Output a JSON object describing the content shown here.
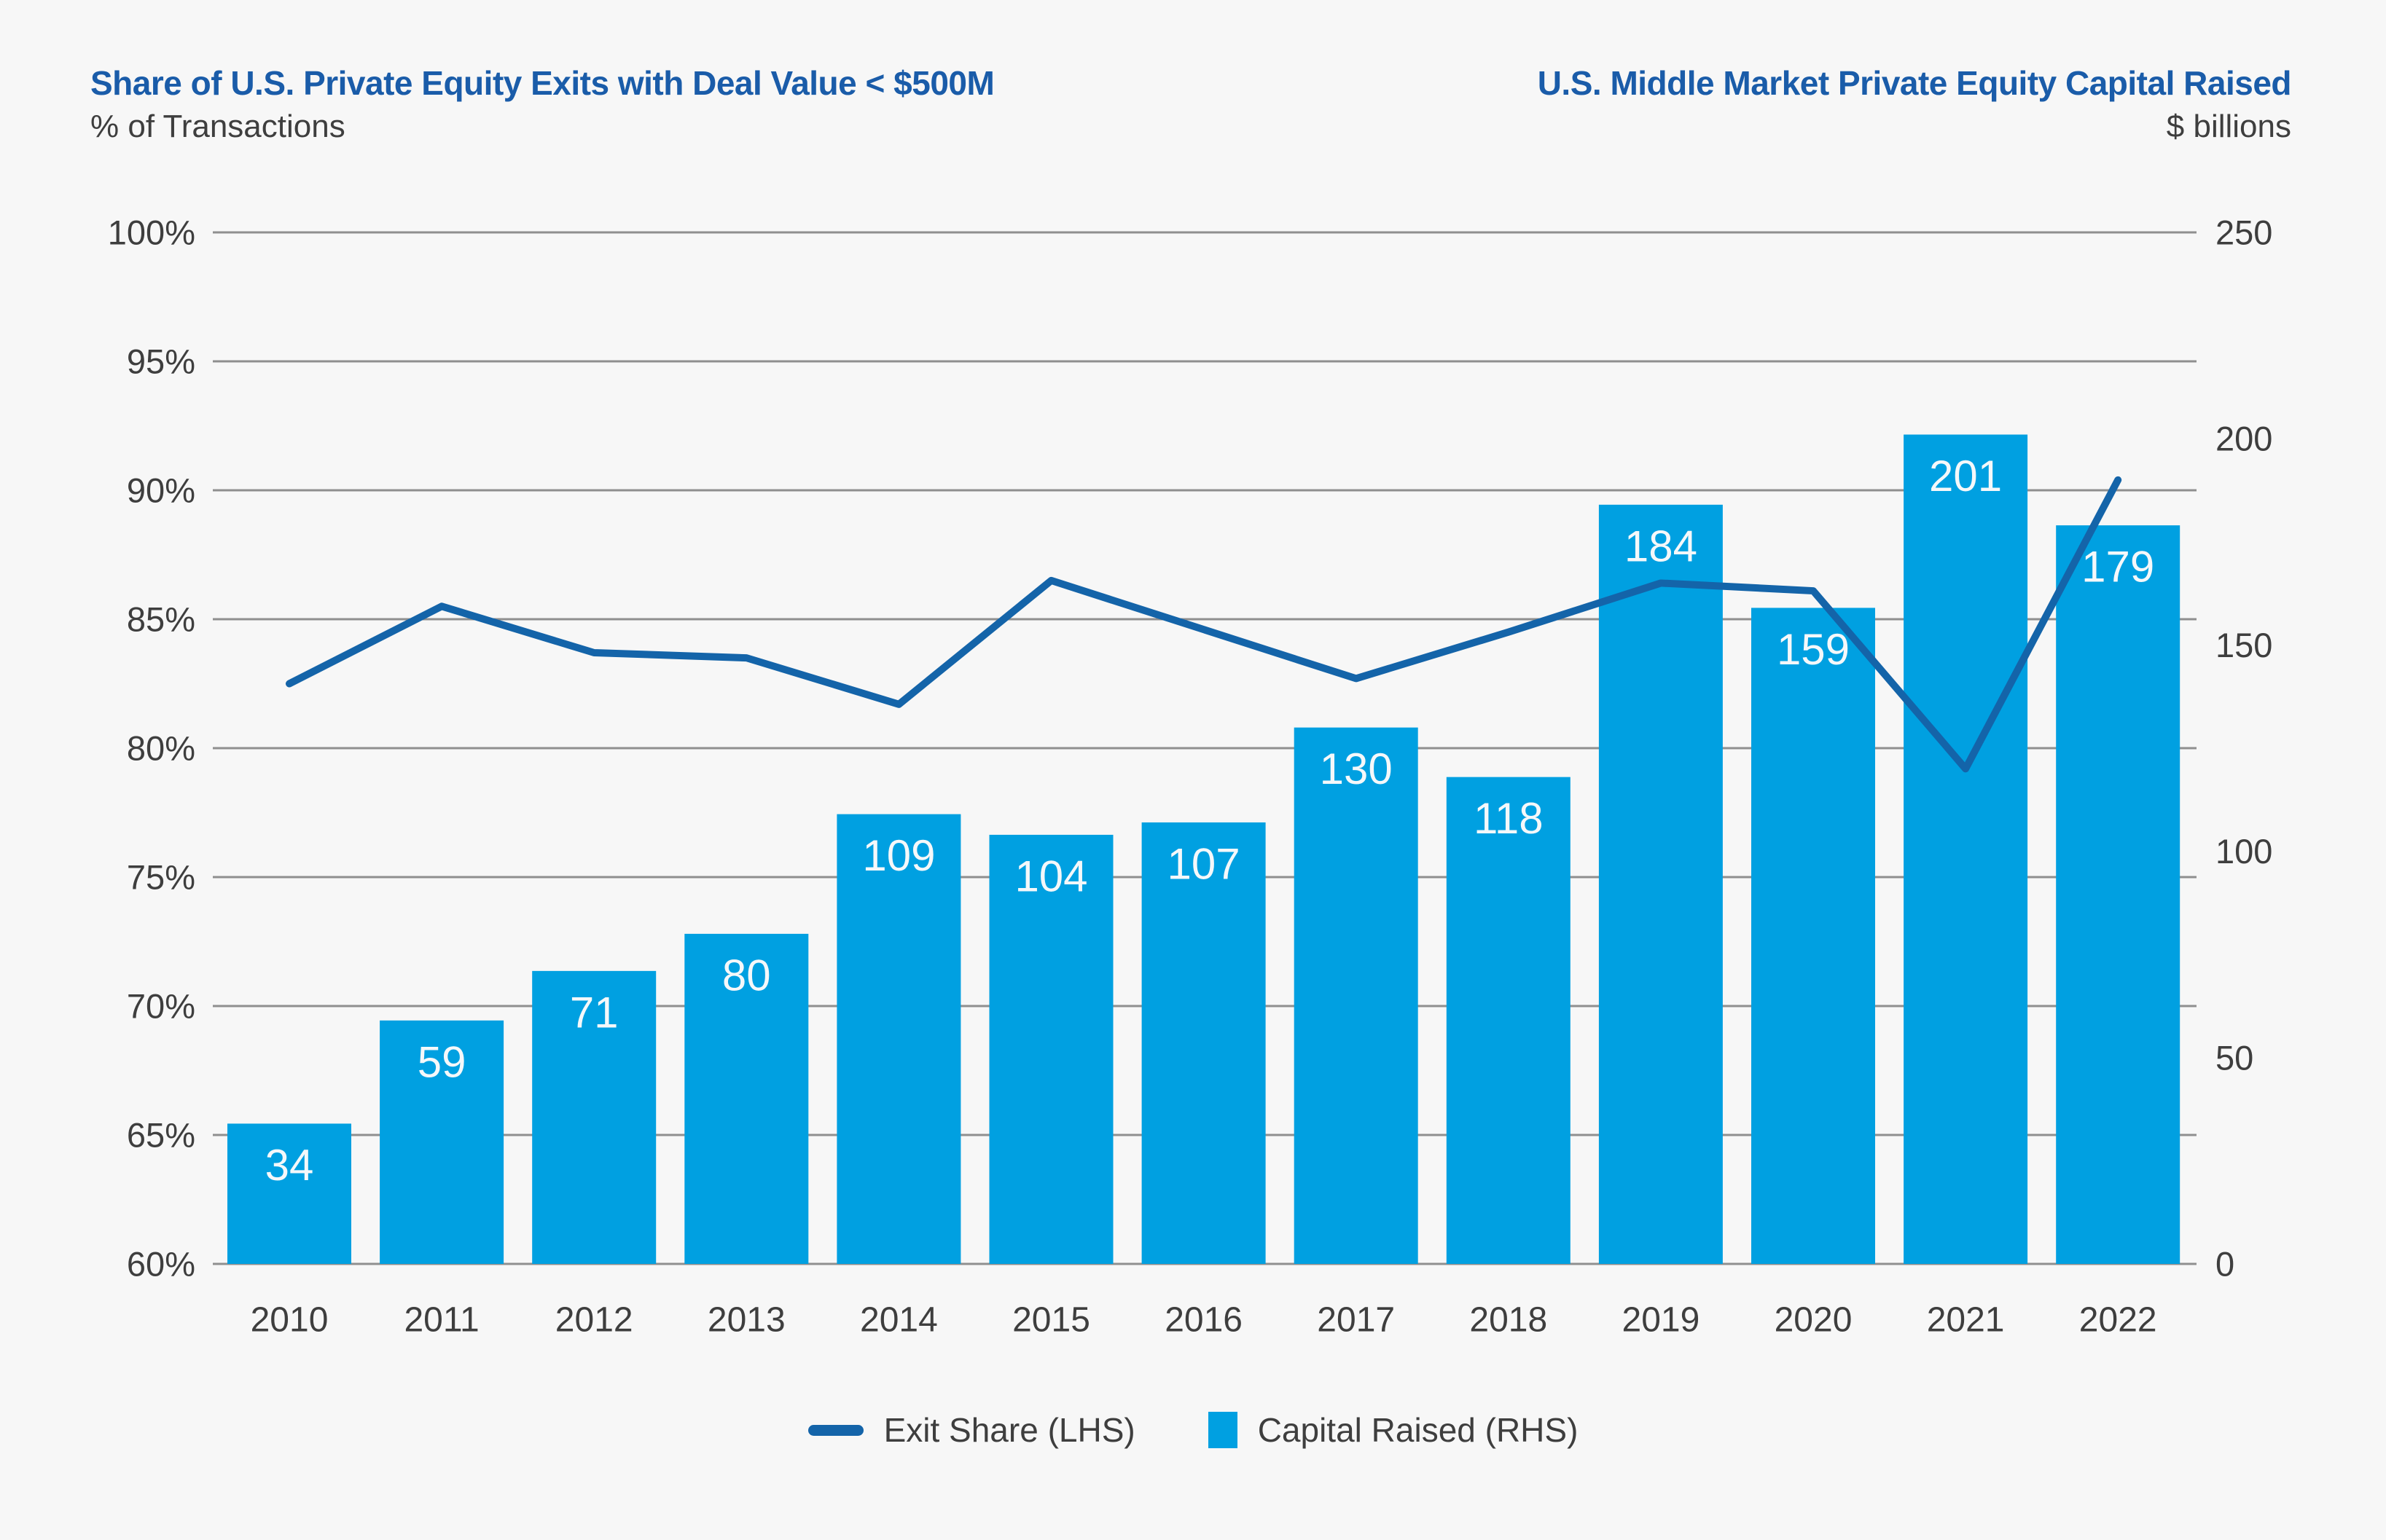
{
  "header": {
    "left_title": "Share of U.S. Private Equity Exits with Deal Value < $500M",
    "left_subtitle": "% of Transactions",
    "right_title": "U.S. Middle Market Private Equity Capital Raised",
    "right_subtitle": "$ billions"
  },
  "legend": {
    "items": [
      {
        "label": "Exit Share (LHS)",
        "marker": "line-dash"
      },
      {
        "label": "Capital Raised (RHS)",
        "marker": "square"
      }
    ]
  },
  "chart_data": {
    "type": "combo",
    "categories": [
      "2010",
      "2011",
      "2012",
      "2013",
      "2014",
      "2015",
      "2016",
      "2017",
      "2018",
      "2019",
      "2020",
      "2021",
      "2022"
    ],
    "series": [
      {
        "name": "Exit Share (LHS)",
        "chart_type": "line",
        "axis": "left",
        "unit": "% of transactions",
        "values": [
          82.5,
          85.5,
          83.7,
          83.5,
          81.7,
          86.5,
          84.6,
          82.7,
          84.5,
          86.4,
          86.1,
          79.2,
          90.4
        ]
      },
      {
        "name": "Capital Raised (RHS)",
        "chart_type": "bar",
        "axis": "right",
        "unit": "$ billions",
        "values": [
          34,
          59,
          71,
          80,
          109,
          104,
          107,
          130,
          118,
          184,
          159,
          201,
          179
        ],
        "bar_labels": [
          "34",
          "59",
          "71",
          "80",
          "109",
          "104",
          "107",
          "130",
          "118",
          "184",
          "159",
          "201",
          "179"
        ]
      }
    ],
    "left_axis": {
      "title": "% of Transactions",
      "min": 60,
      "max": 100,
      "step": 5,
      "tick_labels": [
        "100%",
        "95%",
        "90%",
        "85%",
        "80%",
        "75%",
        "70%",
        "65%",
        "60%"
      ]
    },
    "right_axis": {
      "title": "$ billions",
      "min": 0,
      "max": 250,
      "step": 50,
      "tick_labels": [
        "250",
        "200",
        "150",
        "100",
        "50",
        "0"
      ]
    },
    "grid": "horizontal",
    "legend_position": "bottom-center",
    "colors": {
      "background": "#f7f7f7",
      "bar": "#00a0e1",
      "line": "#1464a9",
      "title": "#1a5ca9",
      "text": "#3e3e3e",
      "grid": "#8f8f8f",
      "bar_label": "#f5f8fa"
    }
  }
}
